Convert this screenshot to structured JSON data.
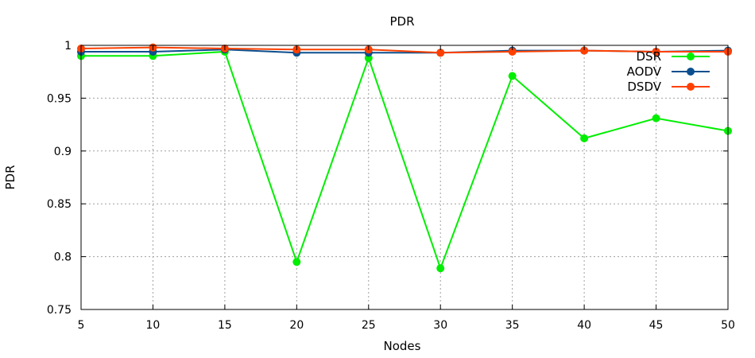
{
  "chart_data": {
    "type": "line",
    "title": "PDR",
    "xlabel": "Nodes",
    "ylabel": "PDR",
    "x": [
      5,
      10,
      15,
      20,
      25,
      30,
      35,
      40,
      45,
      50
    ],
    "xlim": [
      5,
      50
    ],
    "ylim": [
      0.75,
      1.0
    ],
    "xticks": [
      "5",
      "10",
      "15",
      "20",
      "25",
      "30",
      "35",
      "40",
      "45",
      "50"
    ],
    "yticks": [
      {
        "value": 0.75,
        "label": "0.75"
      },
      {
        "value": 0.8,
        "label": "0.8"
      },
      {
        "value": 0.85,
        "label": "0.85"
      },
      {
        "value": 0.9,
        "label": "0.9"
      },
      {
        "value": 0.95,
        "label": "0.95"
      },
      {
        "value": 1.0,
        "label": "1"
      }
    ],
    "grid": true,
    "legend_position": "top-right",
    "series": [
      {
        "name": "DSR",
        "color": "#00ee00",
        "values": [
          0.99,
          0.99,
          0.994,
          0.795,
          0.988,
          0.789,
          0.971,
          0.912,
          0.931,
          0.919
        ]
      },
      {
        "name": "AODV",
        "color": "#0b4f8e",
        "values": [
          0.994,
          0.994,
          0.996,
          0.993,
          0.993,
          0.993,
          0.995,
          0.995,
          0.994,
          0.995
        ]
      },
      {
        "name": "DSDV",
        "color": "#ff4000",
        "values": [
          0.997,
          0.998,
          0.997,
          0.996,
          0.996,
          0.993,
          0.994,
          0.995,
          0.994,
          0.994
        ]
      }
    ]
  }
}
